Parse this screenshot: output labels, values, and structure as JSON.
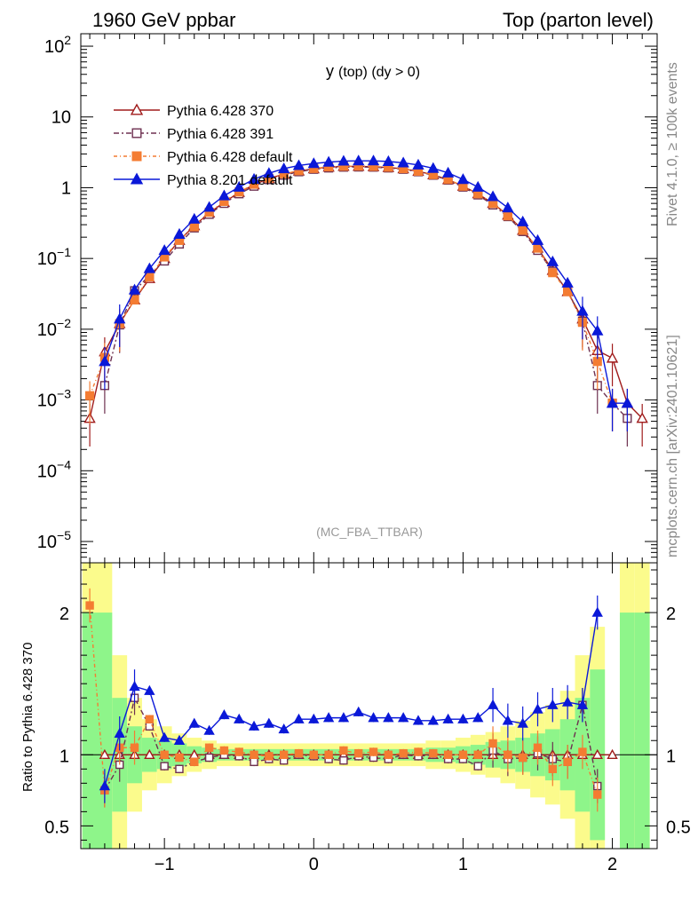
{
  "header": {
    "left": "1960 GeV ppbar",
    "right": "Top (parton level)"
  },
  "side_labels": {
    "rivet": "Rivet 4.1.0, ≥ 100k events",
    "mcplots": "mcplots.cern.ch [arXiv:2401.10621]"
  },
  "chart_data": {
    "type": "line",
    "title_main": "y",
    "title_rest": "(top)  (dy > 0)",
    "watermark": "(MC_FBA_TTBAR)",
    "ylabel_ratio": "Ratio to Pythia 6.428 370",
    "xlim": [
      -1.56,
      2.3
    ],
    "ylim_main": [
      5e-06,
      150
    ],
    "ylim_ratio": [
      0.34,
      2.35
    ],
    "x_ticks": [
      {
        "value": -1,
        "label": "−1"
      },
      {
        "value": 0,
        "label": "0"
      },
      {
        "value": 1,
        "label": "1"
      },
      {
        "value": 2,
        "label": "2"
      }
    ],
    "y_ticks_main": [
      {
        "value": 100,
        "base": "10",
        "exp": "2"
      },
      {
        "value": 10,
        "base": "10",
        "exp": ""
      },
      {
        "value": 1,
        "base": "1",
        "exp": ""
      },
      {
        "value": 0.1,
        "base": "10",
        "exp": "−1"
      },
      {
        "value": 0.01,
        "base": "10",
        "exp": "−2"
      },
      {
        "value": 0.001,
        "base": "10",
        "exp": "−3"
      },
      {
        "value": 0.0001,
        "base": "10",
        "exp": "−4"
      },
      {
        "value": 1e-05,
        "base": "10",
        "exp": "−5"
      }
    ],
    "y_ticks_ratio": [
      {
        "value": 0.5,
        "label": "0.5"
      },
      {
        "value": 1,
        "label": "1"
      },
      {
        "value": 2,
        "label": "2"
      }
    ],
    "x": [
      -1.5,
      -1.4,
      -1.3,
      -1.2,
      -1.1,
      -1.0,
      -0.9,
      -0.8,
      -0.7,
      -0.6,
      -0.5,
      -0.4,
      -0.3,
      -0.2,
      -0.1,
      0.0,
      0.1,
      0.2,
      0.3,
      0.4,
      0.5,
      0.6,
      0.7,
      0.8,
      0.9,
      1.0,
      1.1,
      1.2,
      1.3,
      1.4,
      1.5,
      1.6,
      1.7,
      1.8,
      1.9,
      2.0,
      2.1,
      2.2
    ],
    "series": [
      {
        "name": "Pythia 6.428 370",
        "color": "#a01b1b",
        "marker": "triangle-open",
        "dash": "",
        "values": [
          0.00055,
          0.0048,
          0.012,
          0.026,
          0.052,
          0.1,
          0.18,
          0.29,
          0.44,
          0.62,
          0.86,
          1.1,
          1.35,
          1.55,
          1.72,
          1.85,
          1.95,
          2.0,
          2.0,
          1.98,
          1.93,
          1.85,
          1.7,
          1.52,
          1.3,
          1.05,
          0.82,
          0.6,
          0.41,
          0.25,
          0.14,
          0.068,
          0.034,
          0.014,
          0.005,
          0.0039,
          0.0009,
          0.00055
        ],
        "ratio": [
          null,
          1.0,
          1.0,
          1.0,
          1.0,
          1.0,
          1.0,
          1.0,
          1.0,
          1.0,
          1.0,
          1.0,
          1.0,
          1.0,
          1.0,
          1.0,
          1.0,
          1.0,
          1.0,
          1.0,
          1.0,
          1.0,
          1.0,
          1.0,
          1.0,
          1.0,
          1.0,
          1.0,
          1.0,
          1.0,
          1.0,
          1.0,
          1.0,
          1.0,
          1.0,
          1.0,
          null,
          null
        ]
      },
      {
        "name": "Pythia 6.428 391",
        "color": "#6e3050",
        "marker": "square-open",
        "dash": "6,3,2,3",
        "values": [
          null,
          0.0016,
          0.0115,
          0.035,
          0.058,
          0.092,
          0.16,
          0.27,
          0.42,
          0.6,
          0.82,
          1.05,
          1.3,
          1.5,
          1.68,
          1.82,
          1.9,
          1.95,
          1.96,
          1.95,
          1.9,
          1.82,
          1.68,
          1.5,
          1.28,
          1.02,
          0.79,
          0.57,
          0.39,
          0.24,
          0.13,
          0.066,
          0.035,
          0.013,
          0.0016,
          0.0009,
          0.00055,
          null
        ],
        "ratio": [
          null,
          0.75,
          0.93,
          1.4,
          1.2,
          0.92,
          0.9,
          0.95,
          0.98,
          1.0,
          0.99,
          0.95,
          0.97,
          0.96,
          1.0,
          0.99,
          0.97,
          0.96,
          0.99,
          0.98,
          0.97,
          1.0,
          0.99,
          1.0,
          0.97,
          0.97,
          0.92,
          1.03,
          0.97,
          0.98,
          1.01,
          0.97,
          0.95,
          1.35,
          0.78,
          null,
          null,
          null
        ]
      },
      {
        "name": "Pythia 6.428 default",
        "color": "#f47c32",
        "marker": "square-filled",
        "dash": "4,3,1,3",
        "values": [
          0.00115,
          0.004,
          0.012,
          0.026,
          0.055,
          0.105,
          0.18,
          0.28,
          0.45,
          0.64,
          0.87,
          1.12,
          1.36,
          1.57,
          1.74,
          1.87,
          1.97,
          2.01,
          2.02,
          2.0,
          1.95,
          1.86,
          1.71,
          1.53,
          1.31,
          1.05,
          0.82,
          0.6,
          0.4,
          0.25,
          0.14,
          0.063,
          0.034,
          0.0125,
          0.0035,
          0.0009,
          null,
          null
        ],
        "ratio": [
          2.05,
          0.75,
          1.05,
          1.05,
          1.25,
          1.0,
          0.98,
          0.95,
          1.05,
          1.03,
          1.02,
          1.0,
          0.99,
          1.0,
          1.01,
          1.0,
          1.0,
          1.03,
          1.01,
          1.02,
          1.0,
          1.01,
          1.02,
          1.01,
          1.0,
          1.0,
          1.0,
          1.08,
          1.0,
          0.98,
          1.05,
          0.9,
          0.95,
          1.02,
          0.72,
          null,
          null,
          null
        ]
      },
      {
        "name": "Pythia 8.201 default",
        "color": "#0a18d8",
        "marker": "triangle-filled",
        "dash": "",
        "values": [
          null,
          0.0035,
          0.014,
          0.036,
          0.072,
          0.13,
          0.22,
          0.36,
          0.53,
          0.77,
          1.02,
          1.32,
          1.6,
          1.86,
          2.06,
          2.2,
          2.3,
          2.38,
          2.4,
          2.4,
          2.35,
          2.25,
          2.1,
          1.88,
          1.62,
          1.31,
          1.02,
          0.75,
          0.52,
          0.33,
          0.18,
          0.09,
          0.045,
          0.018,
          0.0095,
          0.0009,
          0.0009,
          null
        ],
        "ratio": [
          null,
          0.78,
          1.15,
          1.48,
          1.45,
          1.12,
          1.1,
          1.22,
          1.17,
          1.28,
          1.25,
          1.2,
          1.22,
          1.18,
          1.25,
          1.25,
          1.26,
          1.26,
          1.3,
          1.26,
          1.26,
          1.26,
          1.24,
          1.24,
          1.25,
          1.25,
          1.26,
          1.35,
          1.24,
          1.22,
          1.32,
          1.35,
          1.37,
          1.35,
          2.0,
          null,
          null,
          null
        ]
      }
    ],
    "ratio_bands": {
      "bins": [
        -1.55,
        -1.45,
        -1.35,
        -1.25,
        -1.15,
        -1.05,
        -0.95,
        -0.85,
        -0.75,
        -0.65,
        0.65,
        0.75,
        0.85,
        0.95,
        1.05,
        1.15,
        1.25,
        1.35,
        1.45,
        1.55,
        1.65,
        1.75,
        1.85,
        1.95,
        2.05,
        2.15,
        2.25
      ],
      "green_half": [
        1.0,
        1.0,
        0.4,
        0.2,
        0.12,
        0.1,
        0.08,
        0.06,
        0.05,
        0.04,
        0.04,
        0.05,
        0.05,
        0.06,
        0.07,
        0.09,
        0.1,
        0.12,
        0.15,
        0.18,
        0.25,
        0.4,
        0.6,
        null,
        1.0,
        1.0
      ],
      "yellow_half": [
        1.5,
        1.5,
        0.7,
        0.4,
        0.25,
        0.2,
        0.15,
        0.12,
        0.1,
        0.08,
        0.08,
        0.1,
        0.1,
        0.12,
        0.14,
        0.16,
        0.2,
        0.24,
        0.3,
        0.35,
        0.45,
        0.7,
        0.9,
        null,
        1.5,
        1.5
      ]
    }
  }
}
